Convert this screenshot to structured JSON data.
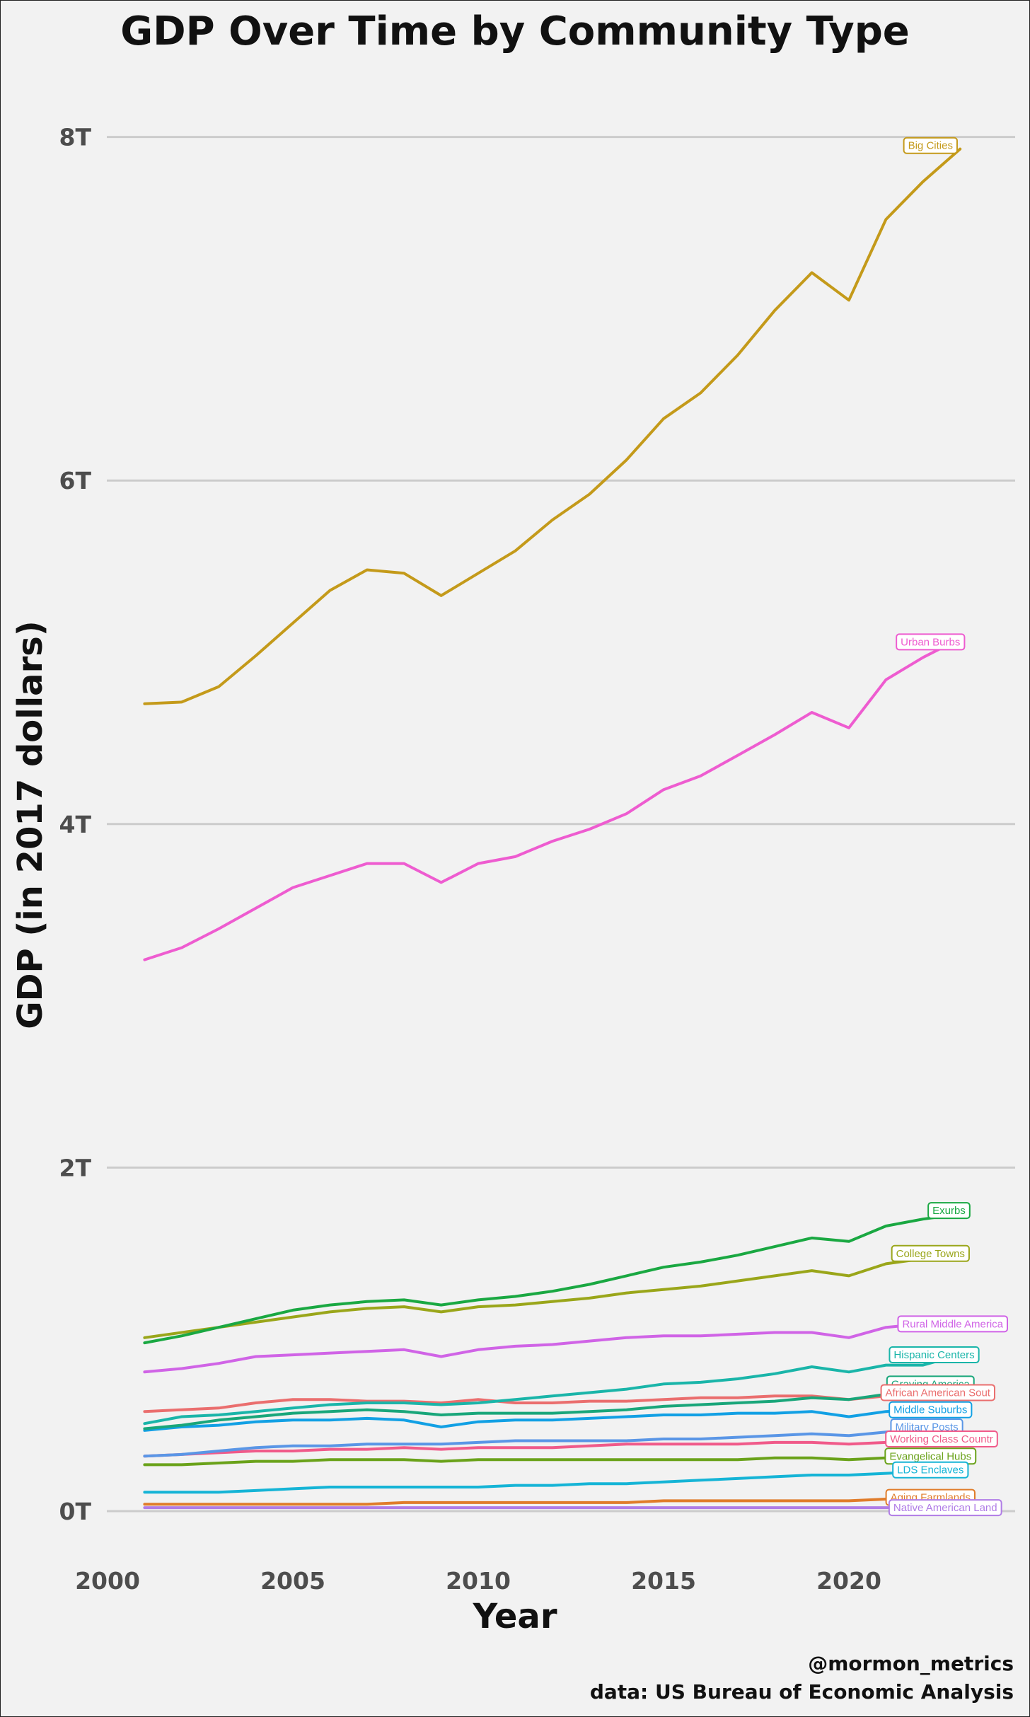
{
  "chart_data": {
    "type": "line",
    "title": "GDP Over Time by Community Type",
    "xlabel": "Year",
    "ylabel": "GDP (in 2017 dollars)",
    "xlim": [
      2000,
      2024.5
    ],
    "ylim": [
      -0.3,
      8.3
    ],
    "x_ticks": [
      2000,
      2005,
      2010,
      2015,
      2020
    ],
    "x_tick_labels": [
      "2000",
      "2005",
      "2010",
      "2015",
      "2020"
    ],
    "y_ticks": [
      0,
      2,
      4,
      6,
      8
    ],
    "y_tick_labels": [
      "0T",
      "2T",
      "4T",
      "6T",
      "8T"
    ],
    "grid": true,
    "legend": "direct labels at line ends",
    "x": [
      2001,
      2002,
      2003,
      2004,
      2005,
      2006,
      2007,
      2008,
      2009,
      2010,
      2011,
      2012,
      2013,
      2014,
      2015,
      2016,
      2017,
      2018,
      2019,
      2020,
      2021,
      2022,
      2023
    ],
    "series": [
      {
        "name": "Big Cities",
        "color": "#c49a1a",
        "values": [
          4.7,
          4.71,
          4.8,
          4.98,
          5.17,
          5.36,
          5.48,
          5.46,
          5.33,
          5.46,
          5.59,
          5.77,
          5.92,
          6.12,
          6.36,
          6.51,
          6.73,
          6.99,
          7.21,
          7.05,
          7.52,
          7.74,
          7.93
        ]
      },
      {
        "name": "Urban Burbs",
        "color": "#ee5cd0",
        "values": [
          3.21,
          3.28,
          3.39,
          3.51,
          3.63,
          3.7,
          3.77,
          3.77,
          3.66,
          3.77,
          3.81,
          3.9,
          3.97,
          4.06,
          4.2,
          4.28,
          4.4,
          4.52,
          4.65,
          4.56,
          4.84,
          4.97,
          5.08
        ]
      },
      {
        "name": "Exurbs",
        "color": "#1aa842",
        "values": [
          0.98,
          1.02,
          1.07,
          1.12,
          1.17,
          1.2,
          1.22,
          1.23,
          1.2,
          1.23,
          1.25,
          1.28,
          1.32,
          1.37,
          1.42,
          1.45,
          1.49,
          1.54,
          1.59,
          1.57,
          1.66,
          1.7,
          1.73
        ]
      },
      {
        "name": "College Towns",
        "color": "#9aa61a",
        "values": [
          1.01,
          1.04,
          1.07,
          1.1,
          1.13,
          1.16,
          1.18,
          1.19,
          1.16,
          1.19,
          1.2,
          1.22,
          1.24,
          1.27,
          1.29,
          1.31,
          1.34,
          1.37,
          1.4,
          1.37,
          1.44,
          1.47,
          1.48
        ]
      },
      {
        "name": "Rural Middle America",
        "color": "#d064e6",
        "values": [
          0.81,
          0.83,
          0.86,
          0.9,
          0.91,
          0.92,
          0.93,
          0.94,
          0.9,
          0.94,
          0.96,
          0.97,
          0.99,
          1.01,
          1.02,
          1.02,
          1.03,
          1.04,
          1.04,
          1.01,
          1.07,
          1.09,
          1.1
        ]
      },
      {
        "name": "Hispanic Centers",
        "color": "#1ab5a9",
        "values": [
          0.51,
          0.55,
          0.56,
          0.58,
          0.6,
          0.62,
          0.63,
          0.63,
          0.62,
          0.63,
          0.65,
          0.67,
          0.69,
          0.71,
          0.74,
          0.75,
          0.77,
          0.8,
          0.84,
          0.81,
          0.85,
          0.85,
          0.91
        ]
      },
      {
        "name": "Graying America",
        "color": "#19a67a",
        "values": [
          0.48,
          0.5,
          0.53,
          0.55,
          0.57,
          0.58,
          0.59,
          0.58,
          0.56,
          0.57,
          0.57,
          0.57,
          0.58,
          0.59,
          0.61,
          0.62,
          0.63,
          0.64,
          0.66,
          0.65,
          0.68,
          0.7,
          0.72
        ]
      },
      {
        "name": "African American South",
        "color": "#ea6e6e",
        "values": [
          0.58,
          0.59,
          0.6,
          0.63,
          0.65,
          0.65,
          0.64,
          0.64,
          0.63,
          0.65,
          0.63,
          0.63,
          0.64,
          0.64,
          0.65,
          0.66,
          0.66,
          0.67,
          0.67,
          0.65,
          0.67,
          0.68,
          0.68
        ]
      },
      {
        "name": "Middle Suburbs",
        "color": "#12a0e4",
        "values": [
          0.47,
          0.49,
          0.5,
          0.52,
          0.53,
          0.53,
          0.54,
          0.53,
          0.49,
          0.52,
          0.53,
          0.53,
          0.54,
          0.55,
          0.56,
          0.56,
          0.57,
          0.57,
          0.58,
          0.55,
          0.58,
          0.59,
          0.58
        ]
      },
      {
        "name": "Military Posts",
        "color": "#5a96e6",
        "values": [
          0.32,
          0.33,
          0.35,
          0.37,
          0.38,
          0.38,
          0.39,
          0.39,
          0.39,
          0.4,
          0.41,
          0.41,
          0.41,
          0.41,
          0.42,
          0.42,
          0.43,
          0.44,
          0.45,
          0.44,
          0.46,
          0.48,
          0.5
        ]
      },
      {
        "name": "Working Class Country",
        "color": "#f05a8a",
        "values": [
          0.32,
          0.33,
          0.34,
          0.35,
          0.35,
          0.36,
          0.36,
          0.37,
          0.36,
          0.37,
          0.37,
          0.37,
          0.38,
          0.39,
          0.39,
          0.39,
          0.39,
          0.4,
          0.4,
          0.39,
          0.4,
          0.41,
          0.42
        ]
      },
      {
        "name": "Evangelical Hubs",
        "color": "#6aa21a",
        "values": [
          0.27,
          0.27,
          0.28,
          0.29,
          0.29,
          0.3,
          0.3,
          0.3,
          0.29,
          0.3,
          0.3,
          0.3,
          0.3,
          0.3,
          0.3,
          0.3,
          0.3,
          0.31,
          0.31,
          0.3,
          0.31,
          0.32,
          0.33
        ]
      },
      {
        "name": "LDS Enclaves",
        "color": "#15b4d6",
        "values": [
          0.11,
          0.11,
          0.11,
          0.12,
          0.13,
          0.14,
          0.14,
          0.14,
          0.14,
          0.14,
          0.15,
          0.15,
          0.16,
          0.16,
          0.17,
          0.18,
          0.19,
          0.2,
          0.21,
          0.21,
          0.22,
          0.23,
          0.24
        ]
      },
      {
        "name": "Aging Farmlands",
        "color": "#e07c2a",
        "values": [
          0.04,
          0.04,
          0.04,
          0.04,
          0.04,
          0.04,
          0.04,
          0.05,
          0.05,
          0.05,
          0.05,
          0.05,
          0.05,
          0.05,
          0.06,
          0.06,
          0.06,
          0.06,
          0.06,
          0.06,
          0.07,
          0.07,
          0.07
        ]
      },
      {
        "name": "Native American Lands",
        "color": "#b07ce6",
        "values": [
          0.02,
          0.02,
          0.02,
          0.02,
          0.02,
          0.02,
          0.02,
          0.02,
          0.02,
          0.02,
          0.02,
          0.02,
          0.02,
          0.02,
          0.02,
          0.02,
          0.02,
          0.02,
          0.02,
          0.02,
          0.02,
          0.02,
          0.02
        ]
      }
    ],
    "end_labels": [
      {
        "text": "Big Cities",
        "series": 0,
        "x": 2022.2,
        "y": 7.95
      },
      {
        "text": "Urban Burbs",
        "series": 1,
        "x": 2022.2,
        "y": 5.06
      },
      {
        "text": "Exurbs",
        "series": 2,
        "x": 2022.7,
        "y": 1.75
      },
      {
        "text": "College Towns",
        "series": 3,
        "x": 2022.2,
        "y": 1.5
      },
      {
        "text": "Rural Middle America",
        "series": 4,
        "x": 2022.8,
        "y": 1.09
      },
      {
        "text": "Hispanic Centers",
        "series": 5,
        "x": 2022.3,
        "y": 0.91
      },
      {
        "text": "Graying America",
        "series": 6,
        "x": 2022.2,
        "y": 0.74
      },
      {
        "text": "African American Sout",
        "series": 7,
        "x": 2022.4,
        "y": 0.69
      },
      {
        "text": "Middle Suburbs",
        "series": 8,
        "x": 2022.2,
        "y": 0.59
      },
      {
        "text": "Military Posts",
        "series": 9,
        "x": 2022.1,
        "y": 0.49
      },
      {
        "text": "Working Class Countr",
        "series": 10,
        "x": 2022.5,
        "y": 0.42
      },
      {
        "text": "Evangelical Hubs",
        "series": 11,
        "x": 2022.2,
        "y": 0.32
      },
      {
        "text": "LDS Enclaves",
        "series": 12,
        "x": 2022.2,
        "y": 0.24
      },
      {
        "text": "Aging Farmlands",
        "series": 13,
        "x": 2022.2,
        "y": 0.08
      },
      {
        "text": "Native American Land",
        "series": 14,
        "x": 2022.6,
        "y": 0.02
      }
    ],
    "captions": [
      "@mormon_metrics",
      "data: US Bureau of Economic Analysis"
    ]
  }
}
